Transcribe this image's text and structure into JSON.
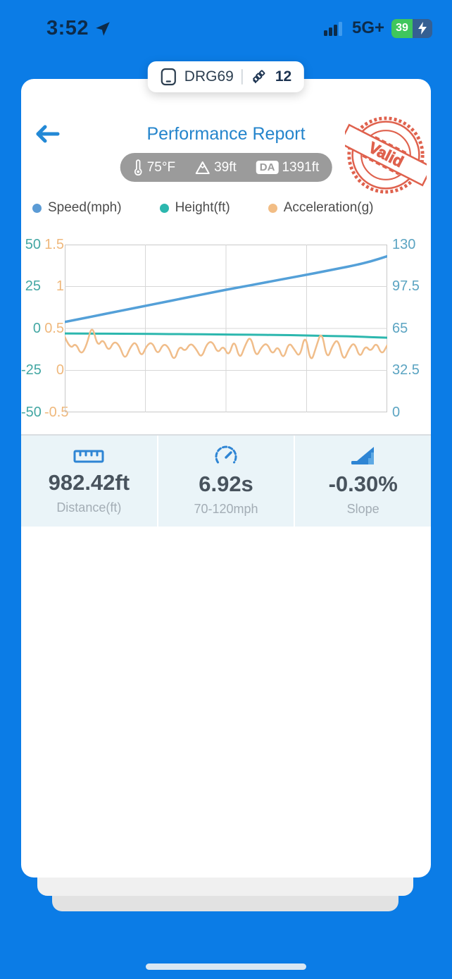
{
  "status_bar": {
    "time": "3:52",
    "network": "5G+",
    "battery_percent": "39"
  },
  "device_pill": {
    "device_id": "DRG69",
    "satellite_count": "12"
  },
  "header": {
    "title": "Performance Report",
    "stamp_text": "Valid",
    "env": {
      "temperature": "75°F",
      "elevation": "39ft",
      "da_label": "DA",
      "density_altitude": "1391ft"
    }
  },
  "legend": [
    {
      "label": "Speed(mph)",
      "color": "#5b9bd5"
    },
    {
      "label": "Height(ft)",
      "color": "#2cb7ae"
    },
    {
      "label": "Acceleration(g)",
      "color": "#f2bd85"
    }
  ],
  "chart_data": {
    "type": "line",
    "title": "",
    "xlabel": "",
    "grid": true,
    "legend_position": "top",
    "axes": {
      "left": {
        "name": "Height(ft)",
        "color": "#43a7a3",
        "range": [
          -50,
          50
        ],
        "ticks": [
          "50",
          "25",
          "0",
          "-25",
          "-50"
        ]
      },
      "orange": {
        "name": "Acceleration(g)",
        "color": "#efb87c",
        "range": [
          -0.5,
          1.5
        ],
        "ticks": [
          "1.5",
          "1",
          "0.5",
          "0",
          "-0.5"
        ]
      },
      "right": {
        "name": "Speed(mph)",
        "color": "#5ba4c2",
        "range": [
          0,
          130
        ],
        "ticks": [
          "130",
          "97.5",
          "65",
          "32.5",
          "0"
        ]
      }
    },
    "series": [
      {
        "name": "Speed(mph)",
        "axis": "right",
        "color": "#54a0d8",
        "width": 3.5,
        "values": [
          70,
          72.5,
          75,
          77.5,
          80,
          82.5,
          85,
          87.5,
          90,
          92.5,
          95,
          97.3,
          99.6,
          102,
          104.3,
          106.6,
          109,
          111.5,
          114,
          117,
          121
        ]
      },
      {
        "name": "Height(ft)",
        "axis": "left",
        "color": "#2cb7ae",
        "width": 3,
        "values": [
          -3,
          -3,
          -3.1,
          -3.1,
          -3.2,
          -3.2,
          -3.3,
          -3.4,
          -3.4,
          -3.5,
          -3.6,
          -3.7,
          -3.8,
          -3.9,
          -4,
          -4.2,
          -4.4,
          -4.6,
          -4.8,
          -5.2,
          -5.5
        ]
      },
      {
        "name": "Acceleration(g)",
        "axis": "orange",
        "color": "#f0bd8a",
        "width": 2.5,
        "values": [
          0.4,
          0.25,
          0.33,
          0.18,
          0.3,
          0.55,
          0.28,
          0.38,
          0.22,
          0.35,
          0.3,
          0.12,
          0.28,
          0.35,
          0.15,
          0.3,
          0.34,
          0.18,
          0.32,
          0.28,
          0.1,
          0.3,
          0.22,
          0.33,
          0.26,
          0.14,
          0.32,
          0.35,
          0.2,
          0.3,
          0.16,
          0.38,
          0.12,
          0.3,
          0.42,
          0.15,
          0.28,
          0.33,
          0.18,
          0.3,
          0.12,
          0.34,
          0.25,
          0.15,
          0.45,
          0.08,
          0.28,
          0.48,
          0.12,
          0.3,
          0.38,
          0.1,
          0.26,
          0.34,
          0.14,
          0.3,
          0.22,
          0.34,
          0.18,
          0.3
        ]
      }
    ]
  },
  "stats": [
    {
      "value": "982.42ft",
      "label": "Distance(ft)",
      "icon": "ruler-icon"
    },
    {
      "value": "6.92s",
      "label": "70-120mph",
      "icon": "gauge-icon"
    },
    {
      "value": "-0.30%",
      "label": "Slope",
      "icon": "slope-icon"
    }
  ],
  "colors": {
    "background": "#0b7ce6",
    "accent_blue": "#2e85d4",
    "stamp_red": "#dd5640",
    "stat_bg": "#eaf4f8"
  }
}
